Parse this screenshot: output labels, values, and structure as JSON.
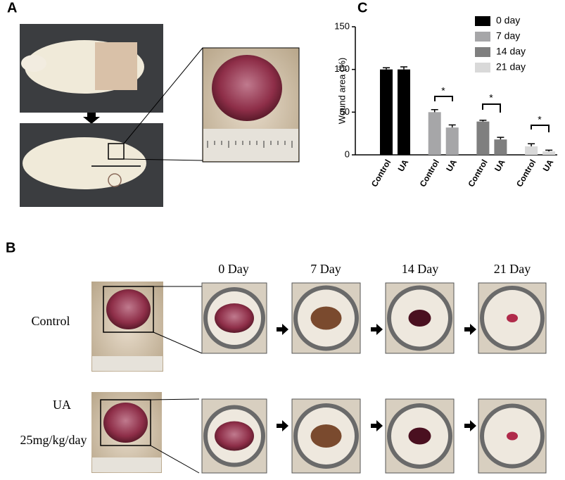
{
  "panel_labels": [
    "A",
    "B",
    "C"
  ],
  "panel_b": {
    "columns": [
      "0 Day",
      "7 Day",
      "14 Day",
      "21 Day"
    ],
    "row_labels": [
      "Control",
      "UA",
      "25mg/kg/day"
    ]
  },
  "chart_data": {
    "type": "bar",
    "y_label": "Wound area (%)",
    "categories": [
      "Control",
      "UA",
      "Control",
      "UA",
      "Control",
      "UA",
      "Control",
      "UA"
    ],
    "series": [
      {
        "name": "0 day",
        "color": "#000000",
        "values": [
          100,
          100,
          null,
          null,
          null,
          null,
          null,
          null
        ],
        "errors": [
          2,
          3,
          null,
          null,
          null,
          null,
          null,
          null
        ]
      },
      {
        "name": "7 day",
        "color": "#a6a6a8",
        "values": [
          null,
          null,
          50,
          32,
          null,
          null,
          null,
          null
        ],
        "errors": [
          null,
          null,
          3,
          3,
          null,
          null,
          null,
          null
        ]
      },
      {
        "name": "14 day",
        "color": "#7f7f7f",
        "values": [
          null,
          null,
          null,
          null,
          39,
          18,
          null,
          null
        ],
        "errors": [
          null,
          null,
          null,
          null,
          1.5,
          2.5,
          null,
          null
        ]
      },
      {
        "name": "21 day",
        "color": "#d9d9d9",
        "values": [
          null,
          null,
          null,
          null,
          null,
          null,
          10,
          4
        ],
        "errors": [
          null,
          null,
          null,
          null,
          null,
          null,
          3,
          1.5
        ]
      }
    ],
    "annotations": [
      "*",
      "*",
      "*"
    ],
    "ylim": [
      0,
      150
    ],
    "yticks": [
      0,
      50,
      100,
      150
    ]
  }
}
